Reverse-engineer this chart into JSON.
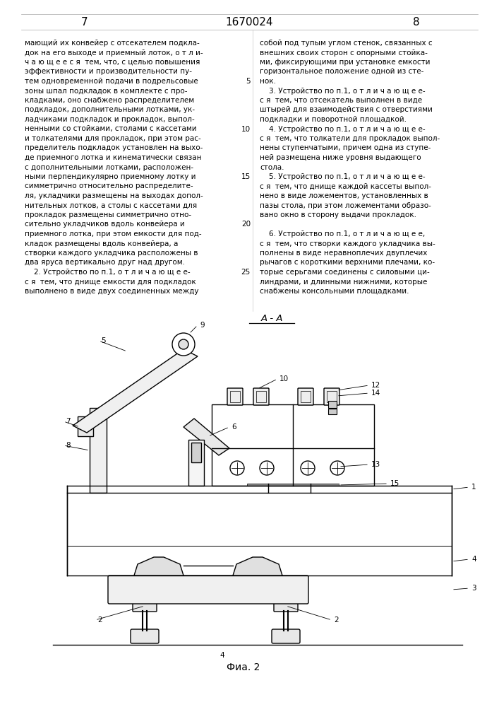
{
  "page_numbers": [
    "7",
    "1670024",
    "8"
  ],
  "text_left": [
    "мающий их конвейер с отсекателем подкла-",
    "док на его выходе и приемный лоток, о т л и-",
    "ч а ю щ е е с я  тем, что, с целью повышения",
    "эффективности и производительности пу-",
    "тем одновременной подачи в подрельсовые",
    "зоны шпал подкладок в комплекте с про-",
    "кладками, оно снабжено распределителем",
    "подкладок, дополнительными лотками, ук-",
    "ладчиками подкладок и прокладок, выпол-",
    "ненными со стойками, столами с кассетами",
    "и толкателями для прокладок, при этом рас-",
    "пределитель подкладок установлен на выхо-",
    "де приемного лотка и кинематически связан",
    "с дополнительными лотками, расположен-",
    "ными перпендикулярно приемному лотку и",
    "симметрично относительно распределите-",
    "ля, укладчики размещены на выходах допол-",
    "нительных лотков, а столы с кассетами для",
    "прокладок размещены симметрично отно-",
    "сительно укладчиков вдоль конвейера и",
    "приемного лотка, при этом емкости для под-",
    "кладок размещены вдоль конвейера, а",
    "створки каждого укладчика расположены в",
    "два яруса вертикально друг над другом.",
    "    2. Устройство по п.1, о т л и ч а ю щ е е-",
    "с я  тем, что днище емкости для подкладок",
    "выполнено в виде двух соединенных между"
  ],
  "text_right": [
    "собой под тупым углом стенок, связанных с",
    "внешних своих сторон с опорными стойка-",
    "ми, фиксирующими при установке емкости",
    "горизонтальное положение одной из сте-",
    "нок.",
    "    3. Устройство по п.1, о т л и ч а ю щ е е-",
    "с я  тем, что отсекатель выполнен в виде",
    "штырей для взаимодействия с отверстиями",
    "подкладки и поворотной площадкой.",
    "    4. Устройство по п.1, о т л и ч а ю щ е е-",
    "с я  тем, что толкатели для прокладок выпол-",
    "нены ступенчатыми, причем одна из ступе-",
    "ней размещена ниже уровня выдающего",
    "стола.",
    "    5. Устройство по п.1, о т л и ч а ю щ е е-",
    "с я  тем, что днище каждой кассеты выпол-",
    "нено в виде ложементов, установленных в",
    "пазы стола, при этом ложементами образо-",
    "вано окно в сторону выдачи прокладок.",
    "",
    "    6. Устройство по п.1, о т л и ч а ю щ е е,",
    "с я  тем, что створки каждого укладчика вы-",
    "полнены в виде неравноплечих двуплечих",
    "рычагов с короткими верхними плечами, ко-",
    "торые серьгами соединены с силовыми ци-",
    "линдрами, и длинными нижними, которые",
    "снабжены консольными площадками."
  ],
  "fig_caption": "Фиа. 2",
  "fig_label": "А - А",
  "background_color": "#ffffff",
  "text_color": "#000000",
  "line_color": "#000000"
}
